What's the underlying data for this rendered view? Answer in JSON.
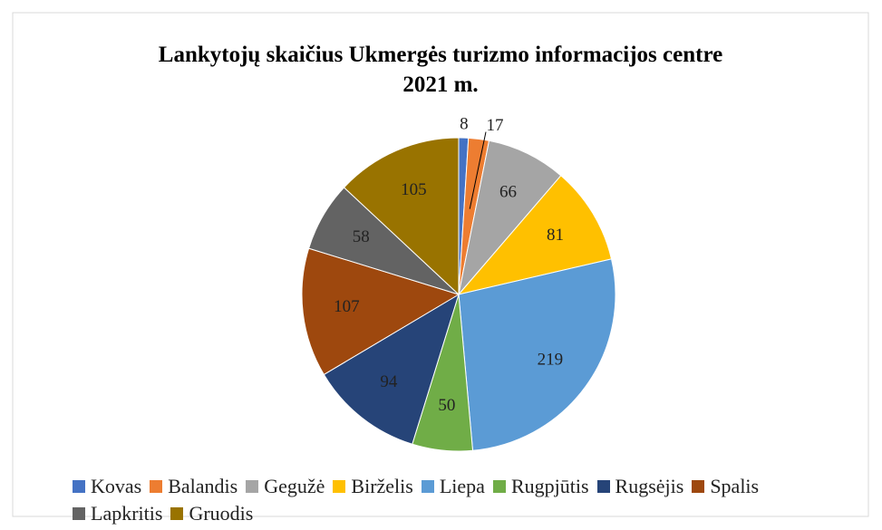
{
  "chart_data": {
    "type": "pie",
    "title": "Lankytojų skaičius Ukmergės turizmo informacijos centre 2021 m.",
    "categories": [
      "Kovas",
      "Balandis",
      "Gegužė",
      "Birželis",
      "Liepa",
      "Rugpjūtis",
      "Rugsėjis",
      "Spalis",
      "Lapkritis",
      "Gruodis"
    ],
    "values": [
      8,
      17,
      66,
      81,
      219,
      50,
      94,
      107,
      58,
      105
    ],
    "colors": [
      "#4472c4",
      "#ed7d31",
      "#a5a5a5",
      "#ffc000",
      "#5b9bd5",
      "#70ad47",
      "#264478",
      "#9e480e",
      "#636363",
      "#997300"
    ],
    "legend": "bottom"
  }
}
